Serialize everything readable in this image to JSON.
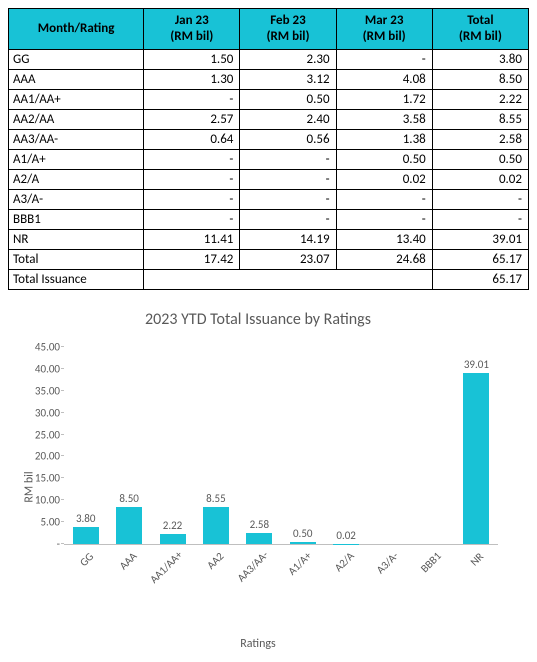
{
  "table": {
    "headers": [
      "Month/Rating",
      "Jan 23\n(RM bil)",
      "Feb 23\n(RM bil)",
      "Mar 23\n(RM bil)",
      "Total\n(RM bil)"
    ],
    "header_bg": "#18c2d6",
    "border_color": "#000000",
    "rows": [
      {
        "label": "GG",
        "cells": [
          "1.50",
          "2.30",
          "-",
          "3.80"
        ]
      },
      {
        "label": "AAA",
        "cells": [
          "1.30",
          "3.12",
          "4.08",
          "8.50"
        ]
      },
      {
        "label": "AA1/AA+",
        "cells": [
          "-",
          "0.50",
          "1.72",
          "2.22"
        ]
      },
      {
        "label": "AA2/AA",
        "cells": [
          "2.57",
          "2.40",
          "3.58",
          "8.55"
        ]
      },
      {
        "label": "AA3/AA-",
        "cells": [
          "0.64",
          "0.56",
          "1.38",
          "2.58"
        ]
      },
      {
        "label": "A1/A+",
        "cells": [
          "-",
          "-",
          "0.50",
          "0.50"
        ]
      },
      {
        "label": "A2/A",
        "cells": [
          "-",
          "-",
          "0.02",
          "0.02"
        ]
      },
      {
        "label": "A3/A-",
        "cells": [
          "-",
          "-",
          "-",
          "-"
        ]
      },
      {
        "label": "BBB1",
        "cells": [
          "-",
          "-",
          "-",
          "-"
        ]
      },
      {
        "label": "NR",
        "cells": [
          "11.41",
          "14.19",
          "13.40",
          "39.01"
        ]
      }
    ],
    "total_row": {
      "label": "Total",
      "cells": [
        "17.42",
        "23.07",
        "24.68",
        "65.17"
      ]
    },
    "issuance_row": {
      "label": "Total Issuance",
      "value": "65.17"
    }
  },
  "chart": {
    "type": "bar",
    "title": "2023 YTD Total Issuance by Ratings",
    "title_fontsize": 16,
    "title_color": "#595959",
    "ylabel": "RM bil",
    "xlabel": "Ratings",
    "label_fontsize": 12,
    "ylim": [
      0,
      45
    ],
    "ytick_step": 5,
    "yticks": [
      "-",
      "5.00",
      "10.00",
      "15.00",
      "20.00",
      "25.00",
      "30.00",
      "35.00",
      "40.00",
      "45.00"
    ],
    "categories": [
      "GG",
      "AAA",
      "AA1/AA+",
      "AA2",
      "AA3/AA-",
      "A1/A+",
      "A2/A",
      "A3/A-",
      "BBB1",
      "NR"
    ],
    "values": [
      3.8,
      8.5,
      2.22,
      8.55,
      2.58,
      0.5,
      0.02,
      0,
      0,
      39.01
    ],
    "value_labels": [
      "3.80",
      "8.50",
      "2.22",
      "8.55",
      "2.58",
      "0.50",
      "0.02",
      "",
      "",
      "39.01"
    ],
    "bar_color": "#18c2d6",
    "background_color": "#ffffff",
    "axis_color": "#bfbfbf",
    "tick_fontsize": 11,
    "bar_width": 0.6
  }
}
